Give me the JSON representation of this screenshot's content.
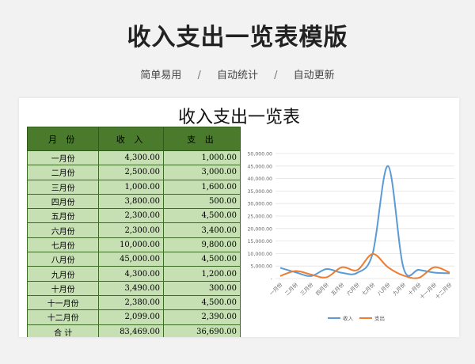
{
  "page": {
    "title": "收入支出一览表模版",
    "tags": [
      "简单易用",
      "自动统计",
      "自动更新"
    ],
    "separator": "/"
  },
  "sheet": {
    "title": "收入支出一览表",
    "headers": [
      "月 份",
      "收 入",
      "支 出"
    ],
    "rows": [
      {
        "month": "一月份",
        "income": "4,300.00",
        "expense": "1,000.00"
      },
      {
        "month": "二月份",
        "income": "2,500.00",
        "expense": "3,000.00"
      },
      {
        "month": "三月份",
        "income": "1,000.00",
        "expense": "1,600.00"
      },
      {
        "month": "四月份",
        "income": "3,800.00",
        "expense": "500.00"
      },
      {
        "month": "五月份",
        "income": "2,300.00",
        "expense": "4,500.00"
      },
      {
        "month": "六月份",
        "income": "2,300.00",
        "expense": "3,400.00"
      },
      {
        "month": "七月份",
        "income": "10,000.00",
        "expense": "9,800.00"
      },
      {
        "month": "八月份",
        "income": "45,000.00",
        "expense": "4,500.00"
      },
      {
        "month": "九月份",
        "income": "4,300.00",
        "expense": "1,200.00"
      },
      {
        "month": "十月份",
        "income": "3,490.00",
        "expense": "300.00"
      },
      {
        "month": "十一月份",
        "income": "2,380.00",
        "expense": "4,500.00"
      },
      {
        "month": "十二月份",
        "income": "2,099.00",
        "expense": "2,390.00"
      }
    ],
    "total": {
      "label": "合 计",
      "income": "83,469.00",
      "expense": "36,690.00"
    }
  },
  "colors": {
    "header_green": "#4a7a2c",
    "cell_green": "#c6e0b4",
    "income_line": "#5b9bd5",
    "expense_line": "#ed7d31"
  },
  "chart_data": {
    "type": "line",
    "categories": [
      "一月份",
      "二月份",
      "三月份",
      "四月份",
      "五月份",
      "六月份",
      "七月份",
      "八月份",
      "九月份",
      "十月份",
      "十一月份",
      "十二月份"
    ],
    "series": [
      {
        "name": "收入",
        "values": [
          4300,
          2500,
          1000,
          3800,
          2300,
          2300,
          10000,
          45000,
          4300,
          3490,
          2380,
          2099
        ]
      },
      {
        "name": "支出",
        "values": [
          1000,
          3000,
          1600,
          500,
          4500,
          3400,
          9800,
          4500,
          1200,
          300,
          4500,
          2390
        ]
      }
    ],
    "yticks": [
      "-",
      "5,000.00",
      "10,000.00",
      "15,000.00",
      "20,000.00",
      "25,000.00",
      "30,000.00",
      "35,000.00",
      "40,000.00",
      "45,000.00",
      "50,000.00"
    ],
    "ylim": [
      0,
      50000
    ],
    "grid": true,
    "smooth": true,
    "legend": "bottom"
  }
}
